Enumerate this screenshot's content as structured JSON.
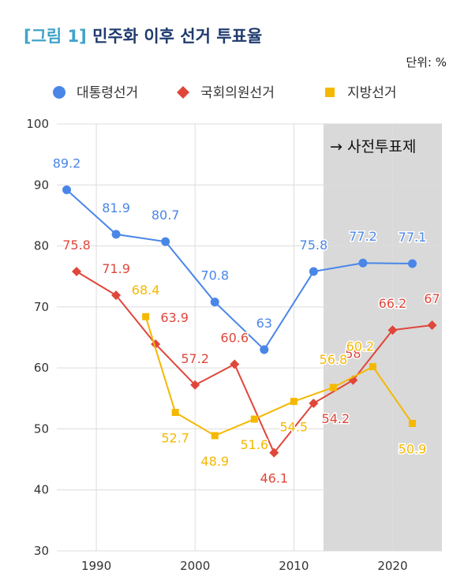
{
  "title_tag": "[그림 1]",
  "title_main": "민주화 이후 선거 투표율",
  "unit": "단위: %",
  "annotation": "→ 사전투표제",
  "colors": {
    "presidential": "#4a86e8",
    "national_assembly": "#e0463a",
    "local": "#f5b800",
    "shade": "#d9d9d9",
    "grid": "#dcdcdc"
  },
  "chart_data": {
    "type": "line",
    "title": "민주화 이후 선거 투표율",
    "xlim": [
      1986,
      2025
    ],
    "ylim": [
      30,
      100
    ],
    "x_ticks": [
      1990,
      2000,
      2010,
      2020
    ],
    "y_ticks": [
      30,
      40,
      50,
      60,
      70,
      80,
      90,
      100
    ],
    "shaded_from": 2013,
    "grid": true,
    "legend_position": "top",
    "series": [
      {
        "name": "대통령선거",
        "key": "presidential",
        "marker": "circle",
        "x": [
          1987,
          1992,
          1997,
          2002,
          2007,
          2012,
          2017,
          2022
        ],
        "values": [
          89.2,
          81.9,
          80.7,
          70.8,
          63,
          75.8,
          77.2,
          77.1
        ],
        "labels": [
          "89.2",
          "81.9",
          "80.7",
          "70.8",
          "63",
          "75.8",
          "77.2",
          "77.1"
        ]
      },
      {
        "name": "국회의원선거",
        "key": "national_assembly",
        "marker": "diamond",
        "x": [
          1988,
          1992,
          1996,
          2000,
          2004,
          2008,
          2012,
          2016,
          2020,
          2024
        ],
        "values": [
          75.8,
          71.9,
          63.9,
          57.2,
          60.6,
          46.1,
          54.2,
          58,
          66.2,
          67
        ],
        "labels": [
          "75.8",
          "71.9",
          "63.9",
          "57.2",
          "60.6",
          "46.1",
          "54.2",
          "58",
          "66.2",
          "67"
        ]
      },
      {
        "name": "지방선거",
        "key": "local",
        "marker": "square",
        "x": [
          1995,
          1998,
          2002,
          2006,
          2010,
          2014,
          2018,
          2022
        ],
        "values": [
          68.4,
          52.7,
          48.9,
          51.6,
          54.5,
          56.8,
          60.2,
          50.9
        ],
        "labels": [
          "68.4",
          "52.7",
          "48.9",
          "51.6",
          "54.5",
          "56.8",
          "60.2",
          "50.9"
        ]
      }
    ]
  }
}
